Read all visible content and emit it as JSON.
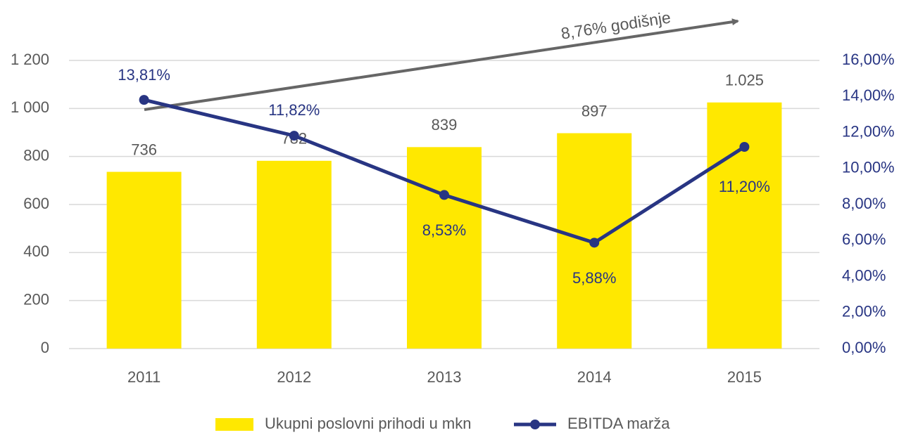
{
  "chart_data": {
    "type": "bar",
    "categories": [
      "2011",
      "2012",
      "2013",
      "2014",
      "2015"
    ],
    "series": [
      {
        "name": "Ukupni poslovni prihodi u mkn",
        "type": "bar",
        "color": "#ffe800",
        "values": [
          736,
          782,
          839,
          897,
          1025
        ],
        "value_labels": [
          "736",
          "782",
          "839",
          "897",
          "1.025"
        ]
      },
      {
        "name": "EBITDA marža",
        "type": "line",
        "axis": "y2",
        "color": "#283583",
        "values": [
          13.81,
          11.82,
          8.53,
          5.88,
          11.2
        ],
        "value_labels": [
          "13,81%",
          "11,82%",
          "8,53%",
          "5,88%",
          "11,20%"
        ]
      }
    ],
    "ylim": [
      0,
      1200
    ],
    "yticks": [
      0,
      200,
      400,
      600,
      800,
      {
        "value": 1000,
        "label": "1 000"
      },
      {
        "value": 1200,
        "label": "1 200"
      }
    ],
    "y2lim": [
      0,
      16
    ],
    "y2ticks": [
      {
        "value": 0,
        "label": "0,00%"
      },
      {
        "value": 2,
        "label": "2,00%"
      },
      {
        "value": 4,
        "label": "4,00%"
      },
      {
        "value": 6,
        "label": "6,00%"
      },
      {
        "value": 8,
        "label": "8,00%"
      },
      {
        "value": 10,
        "label": "10,00%"
      },
      {
        "value": 12,
        "label": "12,00%"
      },
      {
        "value": 14,
        "label": "14,00%"
      },
      {
        "value": 16,
        "label": "16,00%"
      }
    ],
    "annotation": "8,76% godišnje",
    "grid": true,
    "legend": "bottom"
  }
}
